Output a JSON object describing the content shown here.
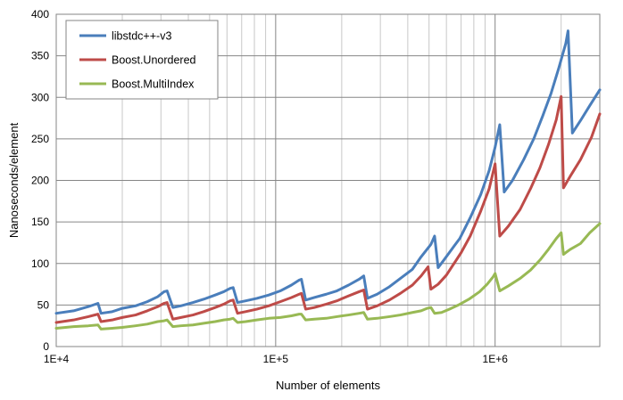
{
  "chart_data": {
    "type": "line",
    "title": "",
    "xlabel": "Number of elements",
    "ylabel": "Nanoseconds/element",
    "x_scale": "log",
    "xlim": [
      10000,
      3000000
    ],
    "ylim": [
      0,
      400
    ],
    "y_ticks": [
      0,
      50,
      100,
      150,
      200,
      250,
      300,
      350,
      400
    ],
    "x_tick_labels": [
      {
        "value": 10000,
        "label": "1E+4"
      },
      {
        "value": 100000,
        "label": "1E+5"
      },
      {
        "value": 1000000,
        "label": "1E+6"
      }
    ],
    "grid": true,
    "legend_position": "top-left",
    "series": [
      {
        "name": "libstdc++-v3",
        "color": "#4a7ebb",
        "points": [
          [
            10000,
            40
          ],
          [
            12000,
            43
          ],
          [
            14000,
            48
          ],
          [
            15500,
            52
          ],
          [
            16000,
            40
          ],
          [
            18000,
            42
          ],
          [
            20000,
            46
          ],
          [
            23000,
            49
          ],
          [
            26000,
            54
          ],
          [
            29000,
            60
          ],
          [
            31000,
            66
          ],
          [
            32000,
            67
          ],
          [
            34000,
            47
          ],
          [
            37000,
            49
          ],
          [
            42000,
            53
          ],
          [
            47000,
            57
          ],
          [
            53000,
            62
          ],
          [
            58000,
            66
          ],
          [
            62000,
            70
          ],
          [
            64000,
            71
          ],
          [
            67000,
            53
          ],
          [
            73000,
            55
          ],
          [
            82000,
            58
          ],
          [
            93000,
            62
          ],
          [
            105000,
            67
          ],
          [
            118000,
            74
          ],
          [
            128000,
            80
          ],
          [
            131000,
            81
          ],
          [
            137000,
            56
          ],
          [
            150000,
            59
          ],
          [
            170000,
            63
          ],
          [
            190000,
            67
          ],
          [
            215000,
            74
          ],
          [
            240000,
            81
          ],
          [
            252000,
            85
          ],
          [
            262000,
            58
          ],
          [
            290000,
            63
          ],
          [
            330000,
            72
          ],
          [
            370000,
            82
          ],
          [
            420000,
            93
          ],
          [
            460000,
            108
          ],
          [
            510000,
            123
          ],
          [
            530000,
            133
          ],
          [
            550000,
            95
          ],
          [
            580000,
            103
          ],
          [
            630000,
            116
          ],
          [
            690000,
            130
          ],
          [
            770000,
            155
          ],
          [
            860000,
            183
          ],
          [
            940000,
            212
          ],
          [
            1000000,
            240
          ],
          [
            1050000,
            267
          ],
          [
            1100000,
            186
          ],
          [
            1200000,
            200
          ],
          [
            1350000,
            225
          ],
          [
            1500000,
            250
          ],
          [
            1650000,
            278
          ],
          [
            1800000,
            305
          ],
          [
            1950000,
            335
          ],
          [
            2100000,
            365
          ],
          [
            2150000,
            380
          ],
          [
            2250000,
            257
          ],
          [
            2450000,
            272
          ],
          [
            2700000,
            290
          ],
          [
            3000000,
            309
          ]
        ]
      },
      {
        "name": "Boost.Unordered",
        "color": "#be4b48",
        "points": [
          [
            10000,
            29
          ],
          [
            12000,
            32
          ],
          [
            14000,
            36
          ],
          [
            15500,
            39
          ],
          [
            16000,
            30
          ],
          [
            18000,
            32
          ],
          [
            20000,
            35
          ],
          [
            23000,
            38
          ],
          [
            26000,
            43
          ],
          [
            29000,
            48
          ],
          [
            31000,
            52
          ],
          [
            32000,
            53
          ],
          [
            34000,
            33
          ],
          [
            37000,
            35
          ],
          [
            42000,
            38
          ],
          [
            47000,
            42
          ],
          [
            53000,
            47
          ],
          [
            58000,
            51
          ],
          [
            62000,
            55
          ],
          [
            64000,
            56
          ],
          [
            67000,
            40
          ],
          [
            73000,
            42
          ],
          [
            82000,
            45
          ],
          [
            93000,
            49
          ],
          [
            105000,
            54
          ],
          [
            118000,
            59
          ],
          [
            128000,
            63
          ],
          [
            131000,
            64
          ],
          [
            137000,
            45
          ],
          [
            150000,
            47
          ],
          [
            170000,
            51
          ],
          [
            190000,
            55
          ],
          [
            215000,
            61
          ],
          [
            240000,
            66
          ],
          [
            252000,
            68
          ],
          [
            262000,
            45
          ],
          [
            290000,
            49
          ],
          [
            330000,
            56
          ],
          [
            370000,
            64
          ],
          [
            420000,
            74
          ],
          [
            460000,
            85
          ],
          [
            495000,
            96
          ],
          [
            510000,
            69
          ],
          [
            550000,
            75
          ],
          [
            600000,
            86
          ],
          [
            650000,
            100
          ],
          [
            700000,
            113
          ],
          [
            770000,
            133
          ],
          [
            860000,
            163
          ],
          [
            940000,
            190
          ],
          [
            1000000,
            220
          ],
          [
            1050000,
            133
          ],
          [
            1150000,
            145
          ],
          [
            1300000,
            165
          ],
          [
            1450000,
            190
          ],
          [
            1600000,
            215
          ],
          [
            1750000,
            243
          ],
          [
            1900000,
            273
          ],
          [
            2000000,
            301
          ],
          [
            2050000,
            191
          ],
          [
            2200000,
            205
          ],
          [
            2450000,
            225
          ],
          [
            2750000,
            252
          ],
          [
            3000000,
            280
          ]
        ]
      },
      {
        "name": "Boost.MultiIndex",
        "color": "#98b954",
        "points": [
          [
            10000,
            22
          ],
          [
            12000,
            24
          ],
          [
            14000,
            25
          ],
          [
            15500,
            26
          ],
          [
            16000,
            21
          ],
          [
            18000,
            22
          ],
          [
            20000,
            23
          ],
          [
            23000,
            25
          ],
          [
            26000,
            27
          ],
          [
            29000,
            30
          ],
          [
            31000,
            31
          ],
          [
            32000,
            32
          ],
          [
            34000,
            24
          ],
          [
            37000,
            25
          ],
          [
            42000,
            26
          ],
          [
            47000,
            28
          ],
          [
            53000,
            30
          ],
          [
            58000,
            32
          ],
          [
            62000,
            33
          ],
          [
            64000,
            34
          ],
          [
            67000,
            29
          ],
          [
            73000,
            30
          ],
          [
            82000,
            32
          ],
          [
            93000,
            34
          ],
          [
            105000,
            35
          ],
          [
            118000,
            37
          ],
          [
            128000,
            39
          ],
          [
            131000,
            39
          ],
          [
            137000,
            32
          ],
          [
            150000,
            33
          ],
          [
            170000,
            34
          ],
          [
            190000,
            36
          ],
          [
            215000,
            38
          ],
          [
            240000,
            40
          ],
          [
            252000,
            41
          ],
          [
            262000,
            33
          ],
          [
            290000,
            34
          ],
          [
            330000,
            36
          ],
          [
            370000,
            38
          ],
          [
            420000,
            41
          ],
          [
            460000,
            43
          ],
          [
            490000,
            46
          ],
          [
            510000,
            47
          ],
          [
            530000,
            40
          ],
          [
            570000,
            41
          ],
          [
            620000,
            45
          ],
          [
            680000,
            50
          ],
          [
            760000,
            57
          ],
          [
            850000,
            66
          ],
          [
            920000,
            75
          ],
          [
            980000,
            84
          ],
          [
            1000000,
            88
          ],
          [
            1050000,
            67
          ],
          [
            1150000,
            73
          ],
          [
            1300000,
            82
          ],
          [
            1450000,
            92
          ],
          [
            1600000,
            104
          ],
          [
            1750000,
            117
          ],
          [
            1900000,
            130
          ],
          [
            2000000,
            137
          ],
          [
            2050000,
            111
          ],
          [
            2200000,
            117
          ],
          [
            2450000,
            124
          ],
          [
            2700000,
            137
          ],
          [
            3000000,
            148
          ]
        ]
      }
    ]
  }
}
